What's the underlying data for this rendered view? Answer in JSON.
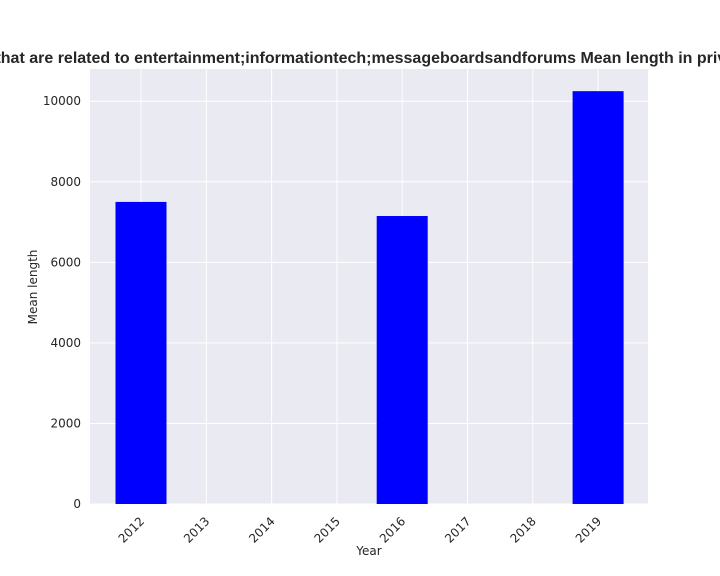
{
  "chart_data": {
    "type": "bar",
    "title": "Websites that are related to entertainment;informationtech;messageboardsandforums Mean length in privacy policies",
    "xlabel": "Year",
    "ylabel": "Mean length",
    "categories": [
      "2012",
      "2013",
      "2014",
      "2015",
      "2016",
      "2017",
      "2018",
      "2019"
    ],
    "series": [
      {
        "values": [
          7500,
          null,
          null,
          null,
          7150,
          null,
          null,
          10250
        ]
      }
    ],
    "ylim": [
      0,
      10800
    ],
    "yticks": [
      0,
      2000,
      4000,
      6000,
      8000,
      10000
    ],
    "grid": true,
    "bar_color": "#0000ff",
    "plot_background": "#eaeaf2",
    "grid_color": "#ffffff"
  }
}
